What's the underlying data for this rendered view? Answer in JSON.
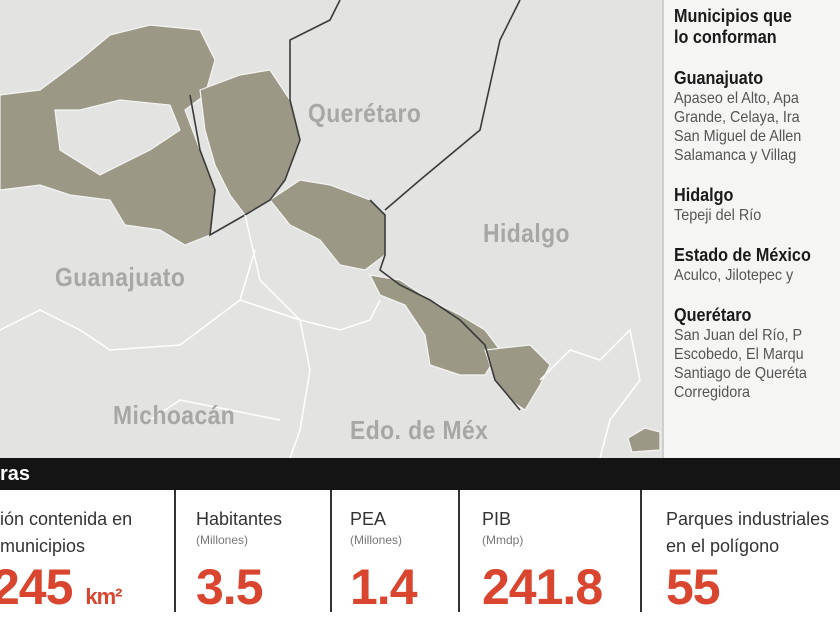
{
  "map": {
    "state_labels": [
      "Querétaro",
      "Hidalgo",
      "Guanajuato",
      "Michoacán",
      "Edo. de Méx"
    ],
    "colors": {
      "background": "#e3e3e1",
      "polygon": "#9b9886",
      "border": "#ffffff",
      "state_border": "#3a3a3a"
    }
  },
  "panel": {
    "title_line1": "Municipios que",
    "title_line2": "lo conforman",
    "groups": [
      {
        "state": "Guanajuato",
        "lines": [
          "Apaseo el Alto, Apa",
          "Grande, Celaya, Ira",
          "San Miguel de Allen",
          "Salamanca y Villag"
        ]
      },
      {
        "state": "Hidalgo",
        "lines": [
          "Tepeji del Río"
        ]
      },
      {
        "state": "Estado de México",
        "lines": [
          "Aculco, Jilotepec y"
        ]
      },
      {
        "state": "Querétaro",
        "lines": [
          "San Juan del Río, P",
          "Escobedo, El Marqu",
          "Santiago de Queréta",
          "Corregidora"
        ]
      }
    ]
  },
  "bar": {
    "title": "ras"
  },
  "stats": [
    {
      "label1": "ión contenida en",
      "label2": "municipios",
      "value": "245",
      "unit": "km²"
    },
    {
      "label1": "Habitantes",
      "sub": "(Millones)",
      "value": "3.5"
    },
    {
      "label1": "PEA",
      "sub": "(Millones)",
      "value": "1.4"
    },
    {
      "label1": "PIB",
      "sub": "(Mmdp)",
      "value": "241.8"
    },
    {
      "label1": "Parques industriales",
      "label2": "en el polígono",
      "value": "55"
    }
  ],
  "accent_color": "#d9452f"
}
